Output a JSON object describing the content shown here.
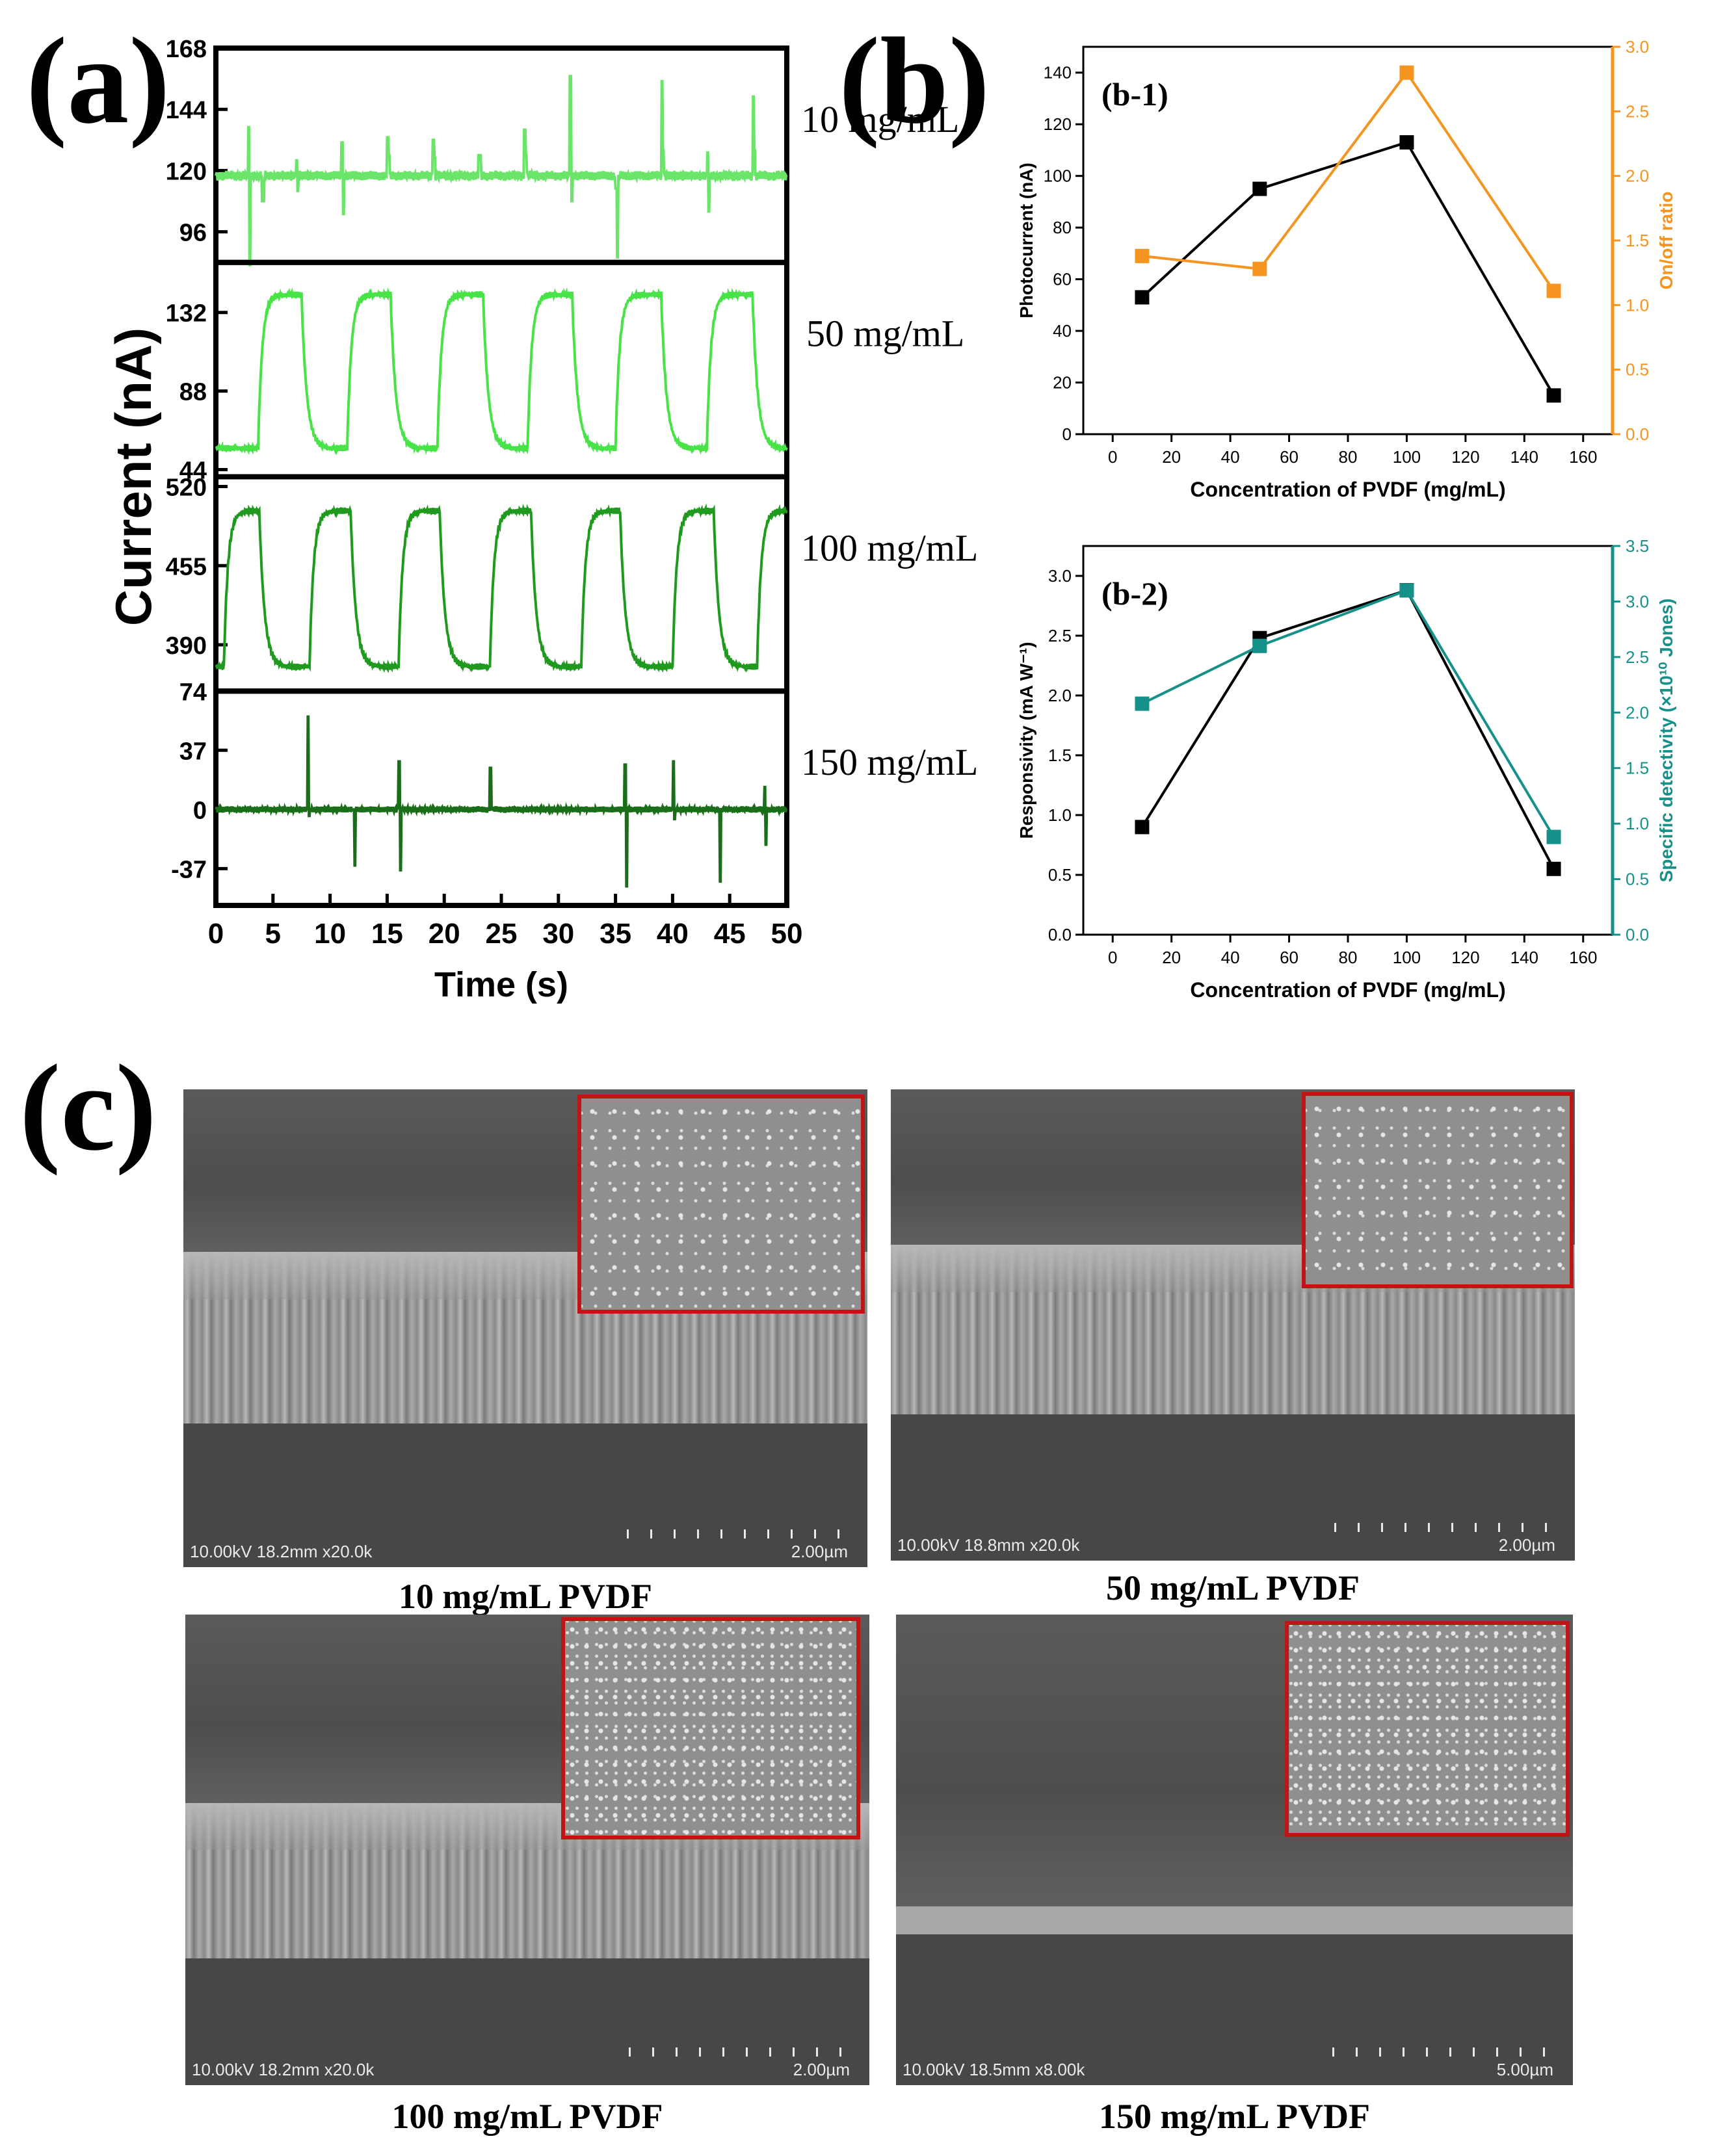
{
  "panel_labels": {
    "a": "(a)",
    "b": "(b)",
    "c": "(c)"
  },
  "colors": {
    "c10": "#6be46a",
    "c50": "#47e347",
    "c100": "#1f9a1f",
    "c150": "#1a6e1a",
    "photocurrent": "#000000",
    "onoff": "#f5941e",
    "responsivity": "#000000",
    "detectivity": "#16918a",
    "inset_border": "#c01515"
  },
  "chart_data": [
    {
      "type": "line",
      "id": "a",
      "xlabel": "Time (s)",
      "ylabel": "Current (nA)",
      "xlim": [
        0,
        50
      ],
      "xticks": [
        "0",
        "5",
        "10",
        "15",
        "20",
        "25",
        "30",
        "35",
        "40",
        "45",
        "50"
      ],
      "subplots": [
        {
          "label": "10 mg/mL",
          "ylim": [
            84,
            168
          ],
          "yticks": [
            "96",
            "120",
            "144",
            "168"
          ],
          "baseline": 118,
          "events": [
            [
              2.8,
              137,
              83
            ],
            [
              4,
              108,
              108
            ],
            [
              7,
              124,
              112
            ],
            [
              11,
              131,
              103
            ],
            [
              15,
              133,
              126
            ],
            [
              19,
              132,
              125
            ],
            [
              23,
              126,
              126
            ],
            [
              27,
              136,
              126
            ],
            [
              31,
              157,
              108
            ],
            [
              35,
              113,
              86
            ],
            [
              39,
              155,
              128
            ],
            [
              43,
              127,
              104
            ],
            [
              47,
              149,
              128
            ]
          ]
        },
        {
          "label": "50 mg/mL",
          "ylim": [
            40,
            160
          ],
          "yticks": [
            "44",
            "88",
            "132"
          ],
          "baseline": 56,
          "high": 142,
          "on_periods": [
            [
              3.7,
              7.5
            ],
            [
              11.5,
              15.3
            ],
            [
              19.4,
              23.4
            ],
            [
              27.3,
              31.2
            ],
            [
              35,
              39
            ],
            [
              43,
              47
            ]
          ]
        },
        {
          "label": "100 mg/mL",
          "ylim": [
            352,
            528
          ],
          "yticks": [
            "390",
            "455",
            "520"
          ],
          "baseline": 372,
          "high": 500,
          "on_periods": [
            [
              0.7,
              3.8
            ],
            [
              8.2,
              11.8
            ],
            [
              16,
              19.6
            ],
            [
              24,
              27.6
            ],
            [
              32,
              35.4
            ],
            [
              40,
              43.6
            ],
            [
              47.4,
              50
            ]
          ]
        },
        {
          "label": "150 mg/mL",
          "ylim": [
            -60,
            74
          ],
          "yticks": [
            "-37",
            "0",
            "37",
            "74"
          ],
          "baseline": 0,
          "events": [
            [
              8,
              58,
              -4
            ],
            [
              12,
              0,
              -35
            ],
            [
              16,
              30,
              -38
            ],
            [
              24,
              26,
              0
            ],
            [
              35.8,
              28,
              -48
            ],
            [
              40,
              30,
              -6
            ],
            [
              44,
              0,
              -45
            ],
            [
              48,
              14,
              -22
            ]
          ]
        }
      ]
    },
    {
      "type": "line",
      "id": "b-1",
      "panel_label": "(b-1)",
      "xlabel": "Concentration of PVDF (mg/mL)",
      "xlim": [
        -10,
        170
      ],
      "xticks": [
        0,
        20,
        40,
        60,
        80,
        100,
        120,
        140,
        160
      ],
      "ylabel_left": "Photocurrent (nA)",
      "ylim_left": [
        0,
        150
      ],
      "yticks_left": [
        0,
        20,
        40,
        60,
        80,
        100,
        120,
        140
      ],
      "ylabel_right": "On/off ratio",
      "ylim_right": [
        0,
        3.0
      ],
      "yticks_right": [
        "0.0",
        "0.5",
        "1.0",
        "1.5",
        "2.0",
        "2.5",
        "3.0"
      ],
      "x": [
        10,
        50,
        100,
        150
      ],
      "series": [
        {
          "name": "Photocurrent (nA)",
          "axis": "left",
          "values": [
            53,
            95,
            113,
            15
          ]
        },
        {
          "name": "On/off ratio",
          "axis": "right",
          "values": [
            1.38,
            1.28,
            2.8,
            1.11
          ]
        }
      ]
    },
    {
      "type": "line",
      "id": "b-2",
      "panel_label": "(b-2)",
      "xlabel": "Concentration of PVDF (mg/mL)",
      "xlim": [
        -10,
        170
      ],
      "xticks": [
        0,
        20,
        40,
        60,
        80,
        100,
        120,
        140,
        160
      ],
      "ylabel_left": "Responsivity (mA W⁻¹)",
      "ylim_left": [
        0,
        3.25
      ],
      "yticks_left": [
        "0.0",
        "0.5",
        "1.0",
        "1.5",
        "2.0",
        "2.5",
        "3.0"
      ],
      "ylabel_right": "Specific detectivity (×10¹⁰ Jones)",
      "ylim_right": [
        0,
        3.5
      ],
      "yticks_right": [
        "0.0",
        "0.5",
        "1.0",
        "1.5",
        "2.0",
        "2.5",
        "3.0",
        "3.5"
      ],
      "x": [
        10,
        50,
        100,
        150
      ],
      "series": [
        {
          "name": "Responsivity",
          "axis": "left",
          "values": [
            0.9,
            2.48,
            2.88,
            0.55
          ]
        },
        {
          "name": "Specific detectivity",
          "axis": "right",
          "values": [
            2.08,
            2.6,
            3.1,
            0.88
          ]
        }
      ]
    }
  ],
  "sem": [
    {
      "caption": "10 mg/mL PVDF",
      "info": "10.00kV 18.2mm x20.0k",
      "scale": "2.00µm"
    },
    {
      "caption": "50 mg/mL PVDF",
      "info": "10.00kV 18.8mm x20.0k",
      "scale": "2.00µm"
    },
    {
      "caption": "100 mg/mL PVDF",
      "info": "10.00kV 18.2mm x20.0k",
      "scale": "2.00µm"
    },
    {
      "caption": "150 mg/mL PVDF",
      "info": "10.00kV 18.5mm x8.00k",
      "scale": "5.00µm"
    }
  ]
}
